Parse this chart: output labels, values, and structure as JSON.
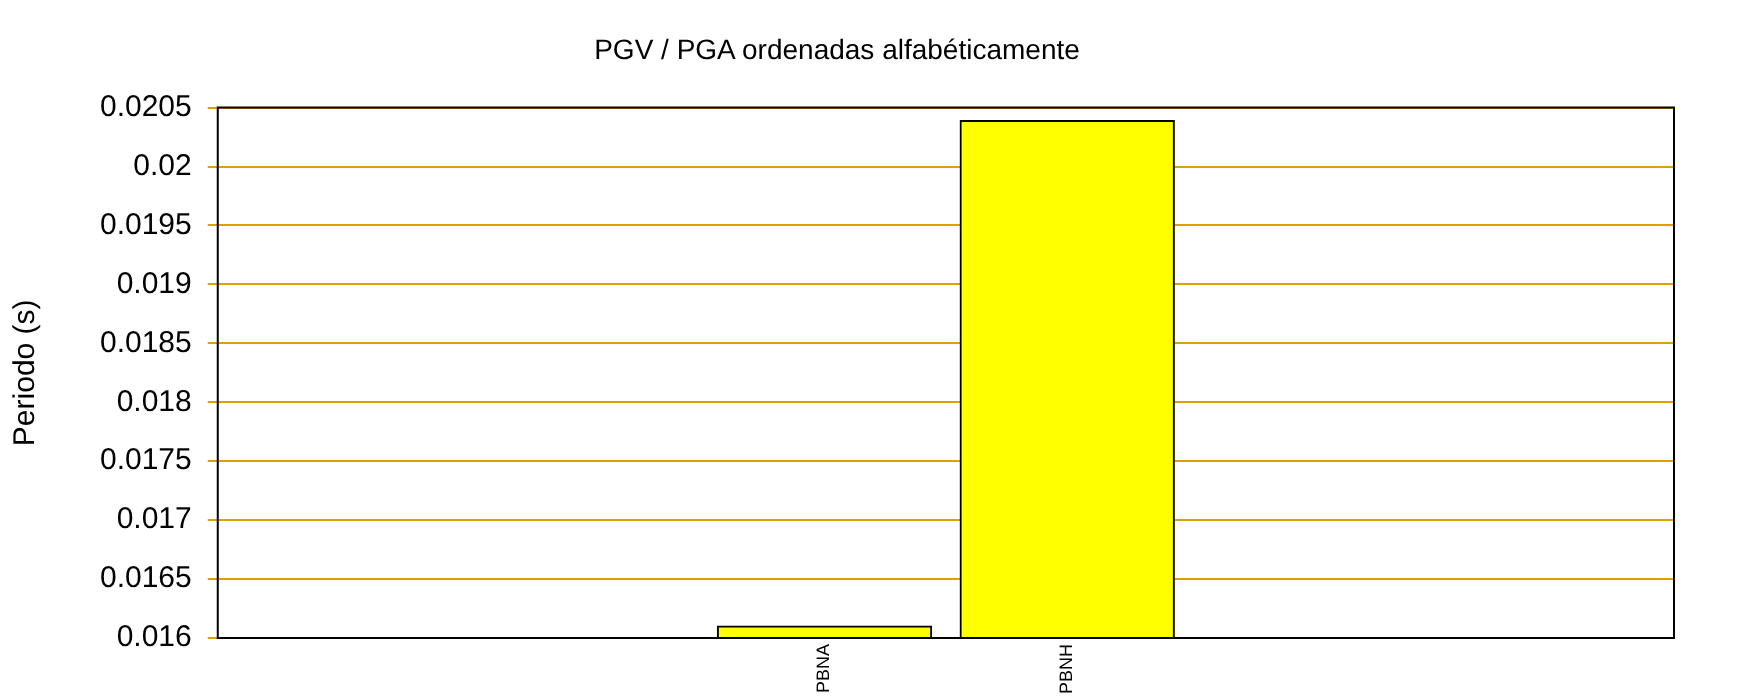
{
  "chart_data": {
    "type": "bar",
    "title": "PGV / PGA ordenadas alfabéticamente",
    "ylabel": "Periodo (s)",
    "categories": [
      "PBNA",
      "PBNH"
    ],
    "series": [
      {
        "color": "#ffff00",
        "values": [
          0.0161,
          0.02039
        ]
      }
    ],
    "ylim": [
      0.016,
      0.0205
    ],
    "yticks": [
      0.016,
      0.0165,
      0.017,
      0.0175,
      0.018,
      0.0185,
      0.019,
      0.0195,
      0.02,
      0.0205
    ],
    "grid": "y",
    "legend": false
  }
}
